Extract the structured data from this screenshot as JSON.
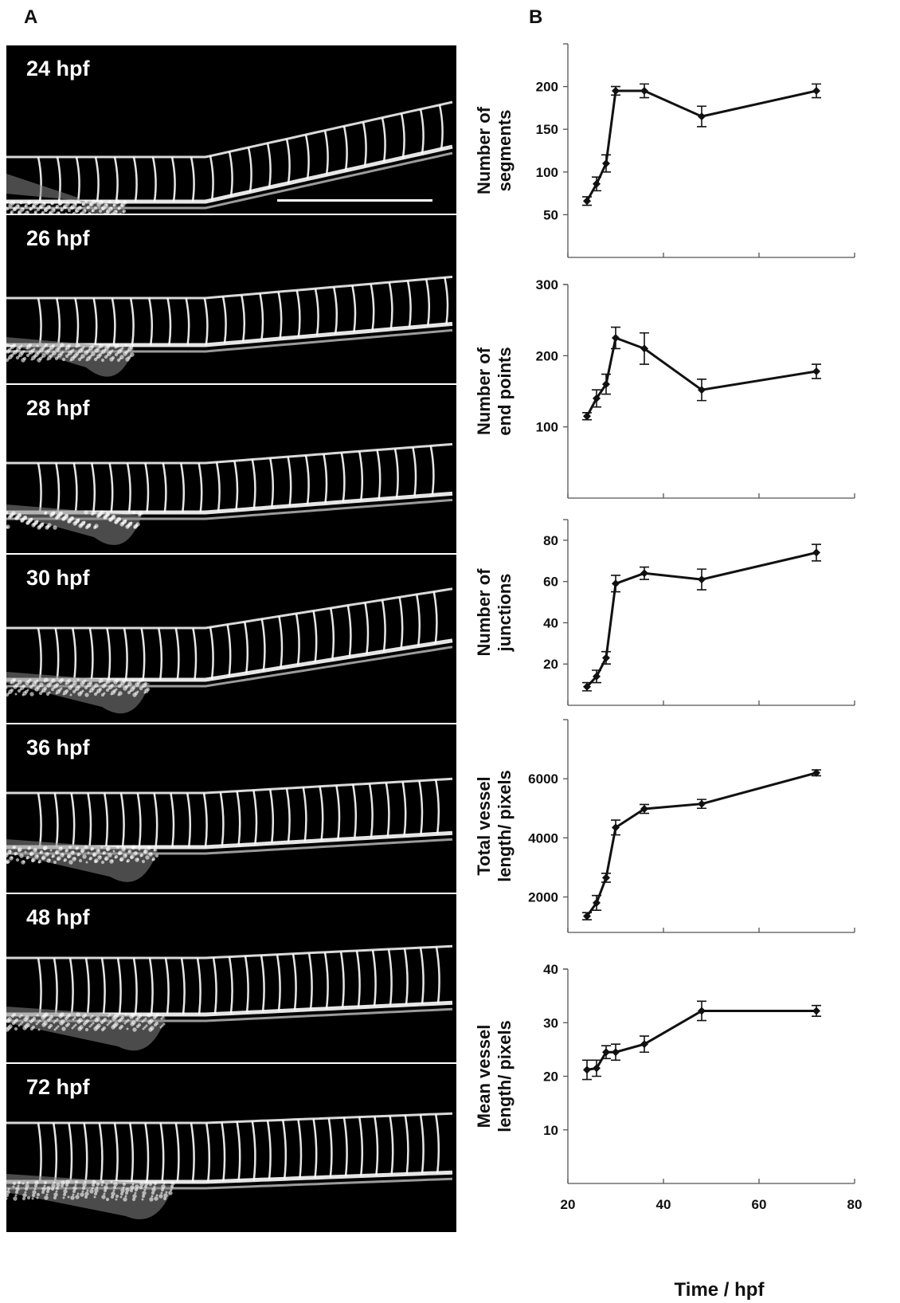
{
  "panels": {
    "A": "A",
    "B": "B"
  },
  "images": [
    {
      "label": "24 hpf"
    },
    {
      "label": "26 hpf"
    },
    {
      "label": "28 hpf"
    },
    {
      "label": "30 hpf"
    },
    {
      "label": "36 hpf"
    },
    {
      "label": "48 hpf"
    },
    {
      "label": "72 hpf"
    }
  ],
  "chart_data": [
    {
      "type": "line",
      "ylabel": [
        "Number of",
        "segments"
      ],
      "x": [
        24,
        26,
        28,
        30,
        36,
        48,
        72
      ],
      "values": [
        66,
        86,
        110,
        195,
        195,
        165,
        195
      ],
      "errors": [
        5,
        8,
        10,
        5,
        8,
        12,
        8
      ],
      "yticks": [
        50,
        100,
        150,
        200
      ],
      "ylim": [
        0,
        250
      ],
      "xlim": [
        20,
        80
      ]
    },
    {
      "type": "line",
      "ylabel": [
        "Number of",
        "end points"
      ],
      "x": [
        24,
        26,
        28,
        30,
        36,
        48,
        72
      ],
      "values": [
        115,
        140,
        160,
        225,
        210,
        152,
        178
      ],
      "errors": [
        5,
        12,
        14,
        15,
        22,
        15,
        10
      ],
      "yticks": [
        100,
        200,
        300
      ],
      "ylim": [
        0,
        300
      ],
      "xlim": [
        20,
        80
      ]
    },
    {
      "type": "line",
      "ylabel": [
        "Number of",
        "junctions"
      ],
      "x": [
        24,
        26,
        28,
        30,
        36,
        48,
        72
      ],
      "values": [
        9,
        14,
        23,
        59,
        64,
        61,
        74
      ],
      "errors": [
        2,
        3,
        3,
        4,
        3,
        5,
        4
      ],
      "yticks": [
        20,
        40,
        60,
        80
      ],
      "ylim": [
        0,
        90
      ],
      "xlim": [
        20,
        80
      ]
    },
    {
      "type": "line",
      "ylabel": [
        "Total vessel",
        "length/ pixels"
      ],
      "x": [
        24,
        26,
        28,
        30,
        36,
        48,
        72
      ],
      "values": [
        1350,
        1800,
        2650,
        4350,
        4980,
        5150,
        6200
      ],
      "errors": [
        120,
        250,
        150,
        250,
        150,
        150,
        100
      ],
      "yticks": [
        2000,
        4000,
        6000
      ],
      "ylim": [
        800,
        8000
      ],
      "xlim": [
        20,
        80
      ]
    },
    {
      "type": "line",
      "ylabel": [
        "Mean vessel",
        "length/ pixels"
      ],
      "x": [
        24,
        26,
        28,
        30,
        36,
        48,
        72
      ],
      "values": [
        21.2,
        21.5,
        24.5,
        24.5,
        26,
        32.2,
        32.2
      ],
      "errors": [
        1.8,
        1.5,
        1.2,
        1.5,
        1.5,
        1.8,
        1
      ],
      "yticks": [
        10,
        20,
        30,
        40
      ],
      "ylim": [
        0,
        40
      ],
      "xlim": [
        20,
        80
      ]
    }
  ],
  "shared_x": {
    "xticks": [
      20,
      40,
      60,
      80
    ],
    "xlabel": "Time / hpf"
  },
  "colors": {
    "line": "#111111",
    "image_bg": "#000000",
    "vessel": "#ffffff"
  }
}
